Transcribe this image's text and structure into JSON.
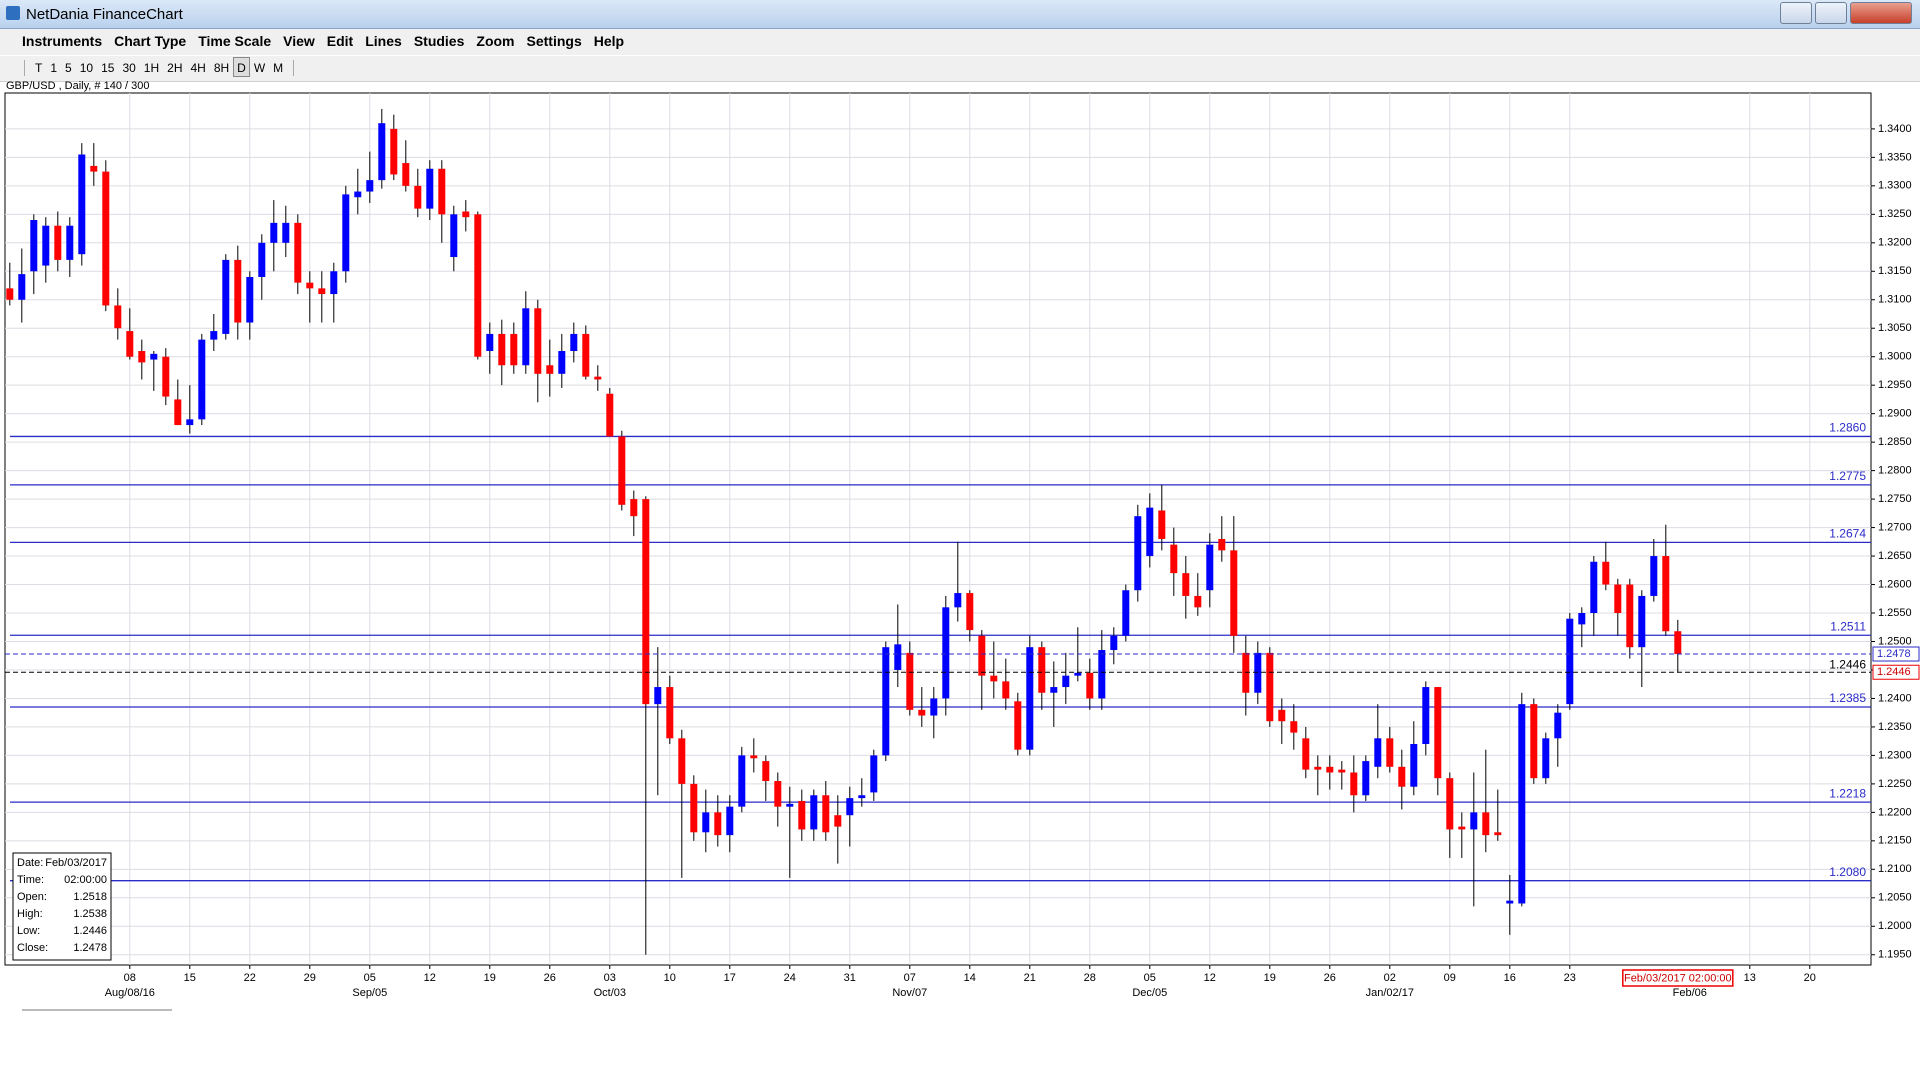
{
  "window": {
    "title": "NetDania FinanceChart"
  },
  "menu": [
    "Instruments",
    "Chart Type",
    "Time Scale",
    "View",
    "Edit",
    "Lines",
    "Studies",
    "Zoom",
    "Settings",
    "Help"
  ],
  "toolbar": [
    "T",
    "1",
    "5",
    "10",
    "15",
    "30",
    "1H",
    "2H",
    "4H",
    "8H",
    "D",
    "W",
    "M"
  ],
  "chart_data": {
    "type": "candlestick",
    "subtitle": "GBP/USD , Daily, # 140 / 300",
    "up_color": "#0000ff",
    "down_color": "#ff0000",
    "ylim": [
      1.1932,
      1.3463
    ],
    "yticks": [
      {
        "value": 1.195,
        "label": "1.1950"
      },
      {
        "value": 1.2,
        "label": "1.2000"
      },
      {
        "value": 1.205,
        "label": "1.2050"
      },
      {
        "value": 1.21,
        "label": "1.2100"
      },
      {
        "value": 1.215,
        "label": "1.2150"
      },
      {
        "value": 1.22,
        "label": "1.2200"
      },
      {
        "value": 1.225,
        "label": "1.2250"
      },
      {
        "value": 1.23,
        "label": "1.2300"
      },
      {
        "value": 1.235,
        "label": "1.2350"
      },
      {
        "value": 1.24,
        "label": "1.2400"
      },
      {
        "value": 1.245,
        "label": "1.2450"
      },
      {
        "value": 1.25,
        "label": "1.2500"
      },
      {
        "value": 1.255,
        "label": "1.2550"
      },
      {
        "value": 1.26,
        "label": "1.2600"
      },
      {
        "value": 1.265,
        "label": "1.2650"
      },
      {
        "value": 1.27,
        "label": "1.2700"
      },
      {
        "value": 1.275,
        "label": "1.2750"
      },
      {
        "value": 1.28,
        "label": "1.2800"
      },
      {
        "value": 1.285,
        "label": "1.2850"
      },
      {
        "value": 1.29,
        "label": "1.2900"
      },
      {
        "value": 1.295,
        "label": "1.2950"
      },
      {
        "value": 1.3,
        "label": "1.3000"
      },
      {
        "value": 1.305,
        "label": "1.3050"
      },
      {
        "value": 1.31,
        "label": "1.3100"
      },
      {
        "value": 1.315,
        "label": "1.3150"
      },
      {
        "value": 1.32,
        "label": "1.3200"
      },
      {
        "value": 1.325,
        "label": "1.3250"
      },
      {
        "value": 1.33,
        "label": "1.3300"
      },
      {
        "value": 1.335,
        "label": "1.3350"
      },
      {
        "value": 1.34,
        "label": "1.3400"
      }
    ],
    "xticks": [
      {
        "value": 10,
        "label": "08"
      },
      {
        "value": 15,
        "label": "15"
      },
      {
        "value": 20,
        "label": "22"
      },
      {
        "value": 25,
        "label": "29"
      },
      {
        "value": 30,
        "label": "05"
      },
      {
        "value": 35,
        "label": "12"
      },
      {
        "value": 40,
        "label": "19"
      },
      {
        "value": 45,
        "label": "26"
      },
      {
        "value": 50,
        "label": "03"
      },
      {
        "value": 55,
        "label": "10"
      },
      {
        "value": 60,
        "label": "17"
      },
      {
        "value": 65,
        "label": "24"
      },
      {
        "value": 70,
        "label": "31"
      },
      {
        "value": 75,
        "label": "07"
      },
      {
        "value": 80,
        "label": "14"
      },
      {
        "value": 85,
        "label": "21"
      },
      {
        "value": 90,
        "label": "28"
      },
      {
        "value": 95,
        "label": "05"
      },
      {
        "value": 100,
        "label": "12"
      },
      {
        "value": 105,
        "label": "19"
      },
      {
        "value": 110,
        "label": "26"
      },
      {
        "value": 115,
        "label": "02"
      },
      {
        "value": 120,
        "label": "09"
      },
      {
        "value": 125,
        "label": "16"
      },
      {
        "value": 130,
        "label": "23"
      },
      {
        "value": 145,
        "label": "13"
      },
      {
        "value": 150,
        "label": "20"
      }
    ],
    "month_labels": [
      {
        "value": 10,
        "label": "Aug/08/16"
      },
      {
        "value": 30,
        "label": "Sep/05"
      },
      {
        "value": 50,
        "label": "Oct/03"
      },
      {
        "value": 75,
        "label": "Nov/07"
      },
      {
        "value": 95,
        "label": "Dec/05"
      },
      {
        "value": 115,
        "label": "Jan/02/17"
      },
      {
        "value": 140,
        "label": "Feb/06"
      }
    ],
    "cursor": {
      "value": 139,
      "label": "Feb/03/2017 02:00:00"
    },
    "levels": [
      {
        "value": 1.286,
        "label": "1.2860"
      },
      {
        "value": 1.2775,
        "label": "1.2775"
      },
      {
        "value": 1.2674,
        "label": "1.2674"
      },
      {
        "value": 1.2511,
        "label": "1.2511"
      },
      {
        "value": 1.2385,
        "label": "1.2385"
      },
      {
        "value": 1.2218,
        "label": "1.2218"
      },
      {
        "value": 1.208,
        "label": "1.2080"
      }
    ],
    "bid_line": {
      "value": 1.2478,
      "label": "1.2478"
    },
    "last_line": {
      "value": 1.2446,
      "label": "1.2446"
    },
    "info": [
      [
        "Date:",
        "Feb/03/2017"
      ],
      [
        "Time:",
        "02:00:00"
      ],
      [
        "Open:",
        "1.2518"
      ],
      [
        "High:",
        "1.2538"
      ],
      [
        "Low:",
        "1.2446"
      ],
      [
        "Close:",
        "1.2478"
      ]
    ],
    "ohlc": [
      [
        1.312,
        1.3165,
        1.309,
        1.31
      ],
      [
        1.31,
        1.319,
        1.306,
        1.3145
      ],
      [
        1.315,
        1.325,
        1.311,
        1.324
      ],
      [
        1.316,
        1.3245,
        1.313,
        1.323
      ],
      [
        1.323,
        1.3255,
        1.315,
        1.317
      ],
      [
        1.317,
        1.3245,
        1.314,
        1.323
      ],
      [
        1.318,
        1.3375,
        1.316,
        1.3355
      ],
      [
        1.3335,
        1.3375,
        1.33,
        1.3325
      ],
      [
        1.3325,
        1.3345,
        1.308,
        1.309
      ],
      [
        1.309,
        1.312,
        1.303,
        1.305
      ],
      [
        1.3045,
        1.3085,
        1.2995,
        1.3
      ],
      [
        1.301,
        1.303,
        1.296,
        1.299
      ],
      [
        1.2995,
        1.301,
        1.294,
        1.3005
      ],
      [
        1.3,
        1.3015,
        1.2915,
        1.293
      ],
      [
        1.2925,
        1.296,
        1.288,
        1.288
      ],
      [
        1.288,
        1.295,
        1.2865,
        1.289
      ],
      [
        1.289,
        1.304,
        1.288,
        1.303
      ],
      [
        1.303,
        1.3075,
        1.301,
        1.3045
      ],
      [
        1.304,
        1.318,
        1.303,
        1.317
      ],
      [
        1.317,
        1.3195,
        1.303,
        1.306
      ],
      [
        1.306,
        1.315,
        1.303,
        1.314
      ],
      [
        1.314,
        1.3215,
        1.31,
        1.32
      ],
      [
        1.32,
        1.3275,
        1.315,
        1.3235
      ],
      [
        1.32,
        1.3265,
        1.3175,
        1.3235
      ],
      [
        1.3235,
        1.325,
        1.311,
        1.313
      ],
      [
        1.313,
        1.315,
        1.306,
        1.312
      ],
      [
        1.312,
        1.315,
        1.306,
        1.311
      ],
      [
        1.311,
        1.3165,
        1.306,
        1.315
      ],
      [
        1.315,
        1.33,
        1.313,
        1.3285
      ],
      [
        1.328,
        1.333,
        1.325,
        1.329
      ],
      [
        1.329,
        1.336,
        1.327,
        1.331
      ],
      [
        1.331,
        1.3435,
        1.3295,
        1.341
      ],
      [
        1.34,
        1.3425,
        1.331,
        1.332
      ],
      [
        1.334,
        1.338,
        1.329,
        1.33
      ],
      [
        1.33,
        1.333,
        1.3245,
        1.326
      ],
      [
        1.326,
        1.3345,
        1.324,
        1.333
      ],
      [
        1.333,
        1.3345,
        1.32,
        1.325
      ],
      [
        1.3175,
        1.3265,
        1.315,
        1.325
      ],
      [
        1.3255,
        1.3275,
        1.322,
        1.3245
      ],
      [
        1.325,
        1.3255,
        1.2995,
        1.3
      ],
      [
        1.301,
        1.306,
        1.297,
        1.304
      ],
      [
        1.304,
        1.3065,
        1.295,
        1.2985
      ],
      [
        1.304,
        1.306,
        1.297,
        1.2985
      ],
      [
        1.2985,
        1.3115,
        1.297,
        1.3085
      ],
      [
        1.3085,
        1.31,
        1.292,
        1.297
      ],
      [
        1.2985,
        1.303,
        1.293,
        1.297
      ],
      [
        1.297,
        1.304,
        1.2945,
        1.301
      ],
      [
        1.301,
        1.306,
        1.299,
        1.304
      ],
      [
        1.304,
        1.3055,
        1.296,
        1.2965
      ],
      [
        1.2965,
        1.2985,
        1.294,
        1.296
      ],
      [
        1.2935,
        1.2945,
        1.286,
        1.286
      ],
      [
        1.286,
        1.287,
        1.273,
        1.274
      ],
      [
        1.275,
        1.2765,
        1.2685,
        1.272
      ],
      [
        1.275,
        1.2755,
        1.195,
        1.239
      ],
      [
        1.239,
        1.249,
        1.223,
        1.242
      ],
      [
        1.242,
        1.244,
        1.232,
        1.233
      ],
      [
        1.233,
        1.2345,
        1.2085,
        1.225
      ],
      [
        1.225,
        1.2265,
        1.215,
        1.2165
      ],
      [
        1.2165,
        1.224,
        1.213,
        1.22
      ],
      [
        1.22,
        1.223,
        1.214,
        1.216
      ],
      [
        1.216,
        1.223,
        1.213,
        1.221
      ],
      [
        1.221,
        1.2315,
        1.22,
        1.23
      ],
      [
        1.23,
        1.233,
        1.227,
        1.2295
      ],
      [
        1.229,
        1.23,
        1.222,
        1.2255
      ],
      [
        1.2255,
        1.227,
        1.2175,
        1.221
      ],
      [
        1.221,
        1.2245,
        1.2085,
        1.2215
      ],
      [
        1.222,
        1.224,
        1.215,
        1.217
      ],
      [
        1.217,
        1.224,
        1.215,
        1.223
      ],
      [
        1.223,
        1.2255,
        1.215,
        1.2165
      ],
      [
        1.2195,
        1.223,
        1.211,
        1.2175
      ],
      [
        1.2195,
        1.2245,
        1.214,
        1.2225
      ],
      [
        1.2225,
        1.226,
        1.221,
        1.223
      ],
      [
        1.2235,
        1.231,
        1.222,
        1.23
      ],
      [
        1.23,
        1.25,
        1.229,
        1.249
      ],
      [
        1.245,
        1.2565,
        1.242,
        1.2495
      ],
      [
        1.248,
        1.25,
        1.237,
        1.238
      ],
      [
        1.238,
        1.242,
        1.235,
        1.237
      ],
      [
        1.237,
        1.242,
        1.233,
        1.24
      ],
      [
        1.24,
        1.258,
        1.237,
        1.256
      ],
      [
        1.256,
        1.2675,
        1.2535,
        1.2585
      ],
      [
        1.2585,
        1.259,
        1.25,
        1.252
      ],
      [
        1.251,
        1.252,
        1.238,
        1.244
      ],
      [
        1.244,
        1.25,
        1.24,
        1.243
      ],
      [
        1.243,
        1.247,
        1.238,
        1.24
      ],
      [
        1.2395,
        1.241,
        1.23,
        1.231
      ],
      [
        1.231,
        1.251,
        1.23,
        1.249
      ],
      [
        1.249,
        1.25,
        1.238,
        1.241
      ],
      [
        1.241,
        1.2465,
        1.235,
        1.242
      ],
      [
        1.242,
        1.248,
        1.239,
        1.244
      ],
      [
        1.244,
        1.2525,
        1.243,
        1.2445
      ],
      [
        1.2445,
        1.247,
        1.238,
        1.24
      ],
      [
        1.24,
        1.252,
        1.238,
        1.2485
      ],
      [
        1.2485,
        1.2525,
        1.246,
        1.251
      ],
      [
        1.251,
        1.26,
        1.25,
        1.259
      ],
      [
        1.259,
        1.274,
        1.257,
        1.272
      ],
      [
        1.265,
        1.276,
        1.263,
        1.2735
      ],
      [
        1.273,
        1.2775,
        1.266,
        1.268
      ],
      [
        1.267,
        1.27,
        1.258,
        1.262
      ],
      [
        1.262,
        1.265,
        1.254,
        1.258
      ],
      [
        1.258,
        1.262,
        1.2545,
        1.256
      ],
      [
        1.259,
        1.269,
        1.256,
        1.267
      ],
      [
        1.268,
        1.272,
        1.264,
        1.266
      ],
      [
        1.266,
        1.272,
        1.248,
        1.251
      ],
      [
        1.248,
        1.251,
        1.237,
        1.241
      ],
      [
        1.241,
        1.25,
        1.239,
        1.248
      ],
      [
        1.248,
        1.249,
        1.235,
        1.236
      ],
      [
        1.238,
        1.24,
        1.232,
        1.236
      ],
      [
        1.236,
        1.239,
        1.231,
        1.234
      ],
      [
        1.233,
        1.235,
        1.226,
        1.2275
      ],
      [
        1.228,
        1.23,
        1.223,
        1.2275
      ],
      [
        1.228,
        1.23,
        1.224,
        1.227
      ],
      [
        1.2275,
        1.229,
        1.224,
        1.227
      ],
      [
        1.227,
        1.23,
        1.22,
        1.223
      ],
      [
        1.223,
        1.23,
        1.222,
        1.229
      ],
      [
        1.228,
        1.239,
        1.226,
        1.233
      ],
      [
        1.233,
        1.235,
        1.227,
        1.228
      ],
      [
        1.228,
        1.231,
        1.2205,
        1.2245
      ],
      [
        1.2245,
        1.236,
        1.223,
        1.232
      ],
      [
        1.232,
        1.243,
        1.23,
        1.242
      ],
      [
        1.242,
        1.242,
        1.223,
        1.226
      ],
      [
        1.226,
        1.227,
        1.212,
        1.217
      ],
      [
        1.2175,
        1.22,
        1.212,
        1.217
      ],
      [
        1.217,
        1.227,
        1.2035,
        1.22
      ],
      [
        1.22,
        1.231,
        1.213,
        1.216
      ],
      [
        1.2165,
        1.224,
        1.215,
        1.216
      ],
      [
        1.204,
        1.209,
        1.1985,
        1.2045
      ],
      [
        1.204,
        1.241,
        1.2035,
        1.239
      ],
      [
        1.239,
        1.24,
        1.225,
        1.226
      ],
      [
        1.226,
        1.234,
        1.225,
        1.233
      ],
      [
        1.233,
        1.239,
        1.228,
        1.2375
      ],
      [
        1.239,
        1.255,
        1.238,
        1.254
      ],
      [
        1.253,
        1.256,
        1.249,
        1.255
      ],
      [
        1.255,
        1.265,
        1.251,
        1.264
      ],
      [
        1.264,
        1.2675,
        1.259,
        1.26
      ],
      [
        1.26,
        1.261,
        1.251,
        1.255
      ],
      [
        1.26,
        1.261,
        1.247,
        1.249
      ],
      [
        1.249,
        1.259,
        1.242,
        1.258
      ],
      [
        1.258,
        1.268,
        1.257,
        1.265
      ],
      [
        1.265,
        1.2705,
        1.251,
        1.2518
      ],
      [
        1.2518,
        1.2538,
        1.2446,
        1.2478
      ]
    ]
  }
}
